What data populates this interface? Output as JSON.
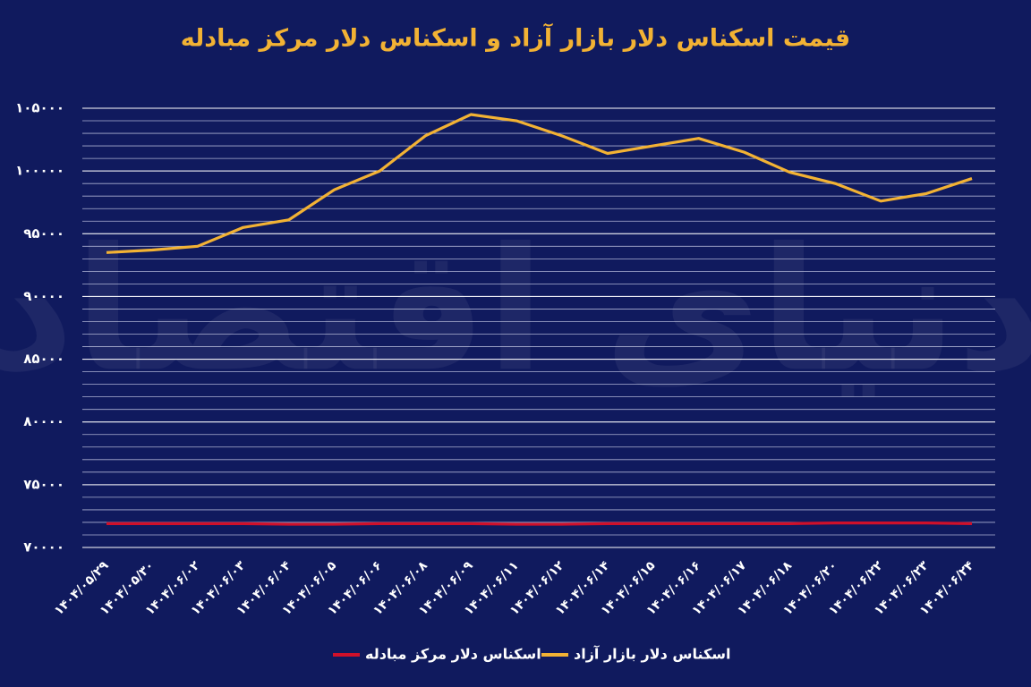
{
  "chart_data": {
    "type": "line",
    "title": "قیمت اسکناس دلار بازار آزاد و اسکناس دلار مرکز مبادله",
    "watermark": "دنیای اقتصاد",
    "categories": [
      "۱۴۰۴/۰۵/۲۹",
      "۱۴۰۴/۰۵/۳۰",
      "۱۴۰۴/۰۶/۰۲",
      "۱۴۰۴/۰۶/۰۳",
      "۱۴۰۴/۰۶/۰۴",
      "۱۴۰۴/۰۶/۰۵",
      "۱۴۰۴/۰۶/۰۶",
      "۱۴۰۴/۰۶/۰۸",
      "۱۴۰۴/۰۶/۰۹",
      "۱۴۰۴/۰۶/۱۱",
      "۱۴۰۴/۰۶/۱۲",
      "۱۴۰۴/۰۶/۱۴",
      "۱۴۰۴/۰۶/۱۵",
      "۱۴۰۴/۰۶/۱۶",
      "۱۴۰۴/۰۶/۱۷",
      "۱۴۰۴/۰۶/۱۸",
      "۱۴۰۴/۰۶/۲۰",
      "۱۴۰۴/۰۶/۲۲",
      "۱۴۰۴/۰۶/۲۳",
      "۱۴۰۴/۰۶/۲۴"
    ],
    "series": [
      {
        "name": "اسکناس دلار بازار آزاد",
        "color": "#f2b234",
        "values": [
          93500,
          93700,
          94000,
          95500,
          96100,
          98500,
          100000,
          102800,
          104500,
          104000,
          102800,
          101400,
          102000,
          102600,
          101500,
          99900,
          99000,
          97600,
          98200,
          99400
        ]
      },
      {
        "name": "اسکناس دلار مرکز مبادله",
        "color": "#d0102a",
        "values": [
          71900,
          71900,
          71900,
          71900,
          71850,
          71850,
          71900,
          71900,
          71900,
          71850,
          71850,
          71900,
          71900,
          71900,
          71900,
          71900,
          71950,
          71950,
          71950,
          71900
        ]
      }
    ],
    "ylim": [
      70000,
      105000
    ],
    "yticks": [
      {
        "value": 70000,
        "label": "۷۰۰۰۰"
      },
      {
        "value": 75000,
        "label": "۷۵۰۰۰"
      },
      {
        "value": 80000,
        "label": "۸۰۰۰۰"
      },
      {
        "value": 85000,
        "label": "۸۵۰۰۰"
      },
      {
        "value": 90000,
        "label": "۹۰۰۰۰"
      },
      {
        "value": 95000,
        "label": "۹۵۰۰۰"
      },
      {
        "value": 100000,
        "label": "۱۰۰۰۰۰"
      },
      {
        "value": 105000,
        "label": "۱۰۵۰۰۰"
      }
    ],
    "grid": true,
    "grid_step": 1000,
    "legend": "bottom"
  }
}
